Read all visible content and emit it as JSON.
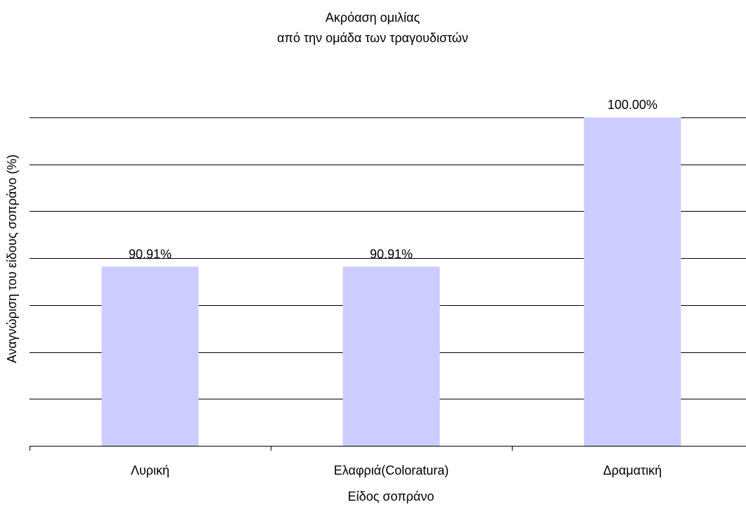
{
  "chart_data": {
    "type": "bar",
    "title": "Ακρόαση ομιλίας",
    "subtitle": "από την ομάδα των τραγουδιστών",
    "xlabel": "Είδος σοπράνο",
    "ylabel": "Αναγνώριση του είδους σοπράνο (%)",
    "categories": [
      "Λυρική",
      "Ελαφριά(Coloratura)",
      "Δραματική"
    ],
    "values": [
      90.91,
      90.91,
      100.0
    ],
    "value_labels": [
      "90.91%",
      "90.91%",
      "100.00%"
    ],
    "ylim": [
      80,
      100
    ],
    "y_gridline_step": 2.857,
    "y_tick_labels_shown": false,
    "grid": true,
    "legend": "none",
    "bar_color": "#ccccff",
    "grid_color": "#000000"
  }
}
